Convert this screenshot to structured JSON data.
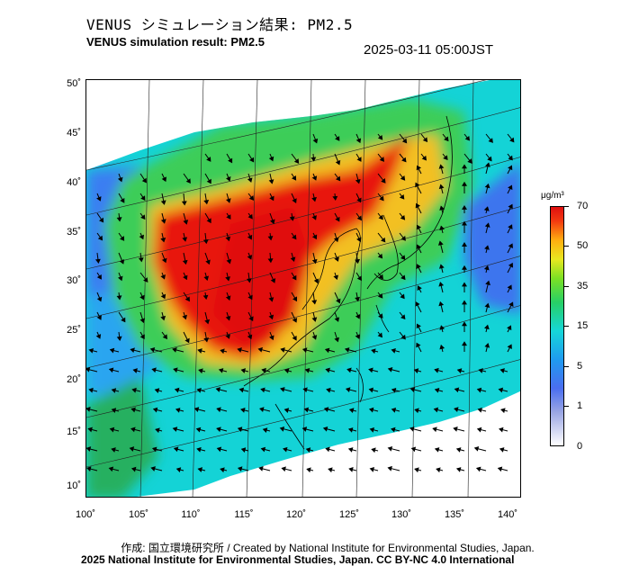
{
  "header": {
    "title_jp": "VENUS シミュレーション結果: PM2.5",
    "title_en": "VENUS simulation result: PM2.5",
    "timestamp": "2025-03-11 05:00JST"
  },
  "map": {
    "lat_labels": [
      "50˚",
      "45˚",
      "40˚",
      "35˚",
      "30˚",
      "25˚",
      "20˚",
      "15˚",
      "10˚"
    ],
    "lon_labels": [
      "100˚",
      "105˚",
      "110˚",
      "115˚",
      "120˚",
      "125˚",
      "130˚",
      "135˚",
      "140˚"
    ],
    "variable": "PM2.5 concentration with wind vectors",
    "colors": {
      "high": "#e01010",
      "mid": "#27d066",
      "low": "#16d6d8",
      "very_low": "#4a6ef0",
      "land": "#ffffff"
    }
  },
  "colorbar": {
    "unit": "μg/m³",
    "ticks": [
      "70",
      "50",
      "35",
      "15",
      "5",
      "1",
      "0"
    ]
  },
  "footer": {
    "credit_line": "作成: 国立環境研究所 / Created by National Institute for Environmental Studies, Japan.",
    "license_line": "2025 National Institute for Environmental Studies, Japan. CC BY-NC 4.0 International"
  }
}
